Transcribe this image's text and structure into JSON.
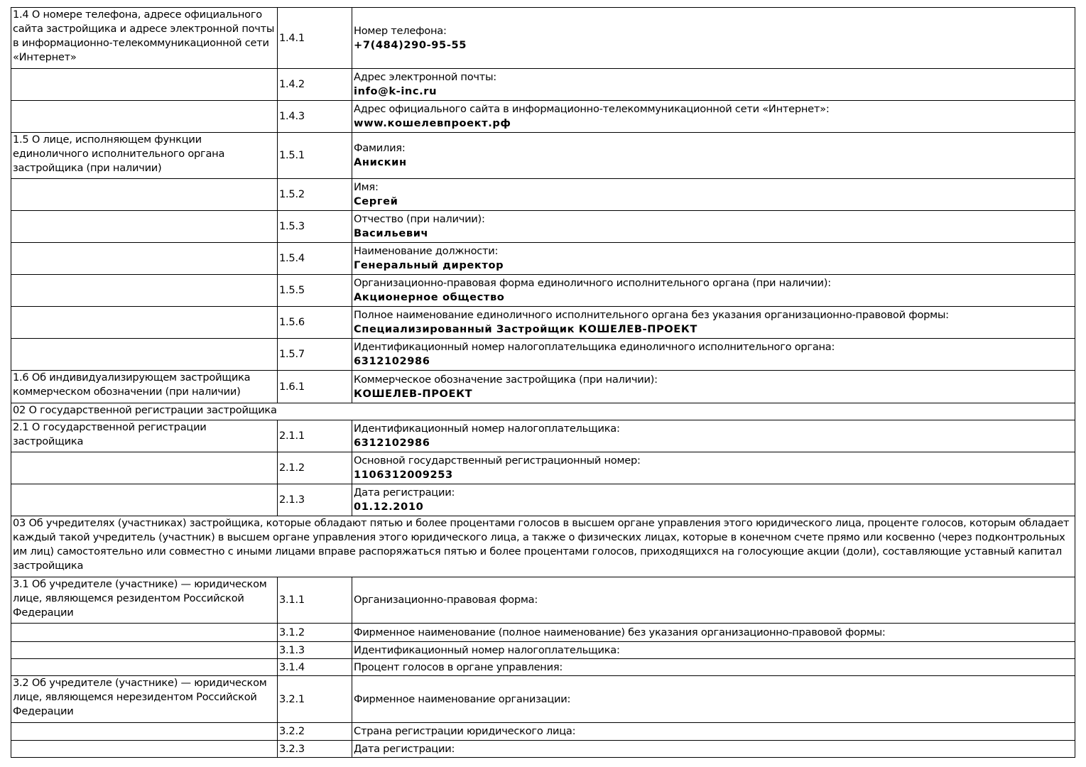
{
  "rows": [
    {
      "type": "item",
      "section": "1.4 О номере телефона, адресе официального сайта застройщика и адресе электронной почты в информационно-телекоммуникационной сети «Интернет»",
      "code": "1.4.1",
      "label": "Номер телефона:",
      "value": "+7(484)290-95-55",
      "h": 86
    },
    {
      "type": "item",
      "section": "",
      "code": "1.4.2",
      "label": "Адрес электронной почты:",
      "value": "info@k-inc.ru",
      "h": 45
    },
    {
      "type": "item",
      "section": "",
      "code": "1.4.3",
      "label": "Адрес официального сайта в информационно-телекоммуникационной сети «Интернет»:",
      "value": "www.кошелевпроект.рф",
      "h": 45
    },
    {
      "type": "item",
      "section": "1.5 О лице, исполняющем функции единоличного исполнительного органа застройщика (при наличии)",
      "code": "1.5.1",
      "label": "Фамилия:",
      "value": "Анискин",
      "h": 65
    },
    {
      "type": "item",
      "section": "",
      "code": "1.5.2",
      "label": "Имя:",
      "value": "Сергей",
      "h": 45
    },
    {
      "type": "item",
      "section": "",
      "code": "1.5.3",
      "label": "Отчество (при наличии):",
      "value": "Васильевич",
      "h": 45
    },
    {
      "type": "item",
      "section": "",
      "code": "1.5.4",
      "label": "Наименование должности:",
      "value": "Генеральный директор",
      "h": 45
    },
    {
      "type": "item",
      "section": "",
      "code": "1.5.5",
      "label": "Организационно-правовая форма единоличного исполнительного органа (при наличии):",
      "value": "Акционерное общество",
      "h": 45
    },
    {
      "type": "item",
      "section": "",
      "code": "1.5.6",
      "label": "Полное наименование единоличного исполнительного органа без указания организационно-правовой формы:",
      "value": "Специализированный Застройщик КОШЕЛЕВ-ПРОЕКТ",
      "h": 45
    },
    {
      "type": "item",
      "section": "",
      "code": "1.5.7",
      "label": "Идентификационный номер налогоплательщика единоличного исполнительного органа:",
      "value": "6312102986",
      "h": 45
    },
    {
      "type": "item",
      "section": "1.6 Об индивидуализирующем застройщика коммерческом обозначении (при наличии)",
      "code": "1.6.1",
      "label": "Коммерческое обозначение застройщика (при наличии):",
      "value": "КОШЕЛЕВ-ПРОЕКТ",
      "h": 46
    },
    {
      "type": "header",
      "text": "02 О государственной регистрации застройщика",
      "h": 24
    },
    {
      "type": "item",
      "section": "2.1 О государственной регистрации застройщика",
      "code": "2.1.1",
      "label": "Идентификационный номер налогоплательщика:",
      "value": "6312102986",
      "h": 45
    },
    {
      "type": "item",
      "section": "",
      "code": "2.1.2",
      "label": "Основной государственный регистрационный номер:",
      "value": "1106312009253",
      "h": 45
    },
    {
      "type": "item",
      "section": "",
      "code": "2.1.3",
      "label": "Дата регистрации:",
      "value": "01.12.2010",
      "h": 45
    },
    {
      "type": "header",
      "text": "03 Об учредителях (участниках) застройщика, которые обладают пятью и более процентами голосов в высшем органе управления этого юридического лица, проценте голосов, которым обладает каждый такой учредитель (участник) в высшем органе управления этого юридического лица, а также о физических лицах, которые в конечном счете прямо или косвенно (через подконтрольных им лиц) самостоятельно или совместно с иными лицами вправе распоряжаться пятью и более процентами голосов, приходящихся на голосующие акции (доли), составляющие уставный капитал застройщика",
      "h": 86
    },
    {
      "type": "item",
      "section": "3.1 Об учредителе (участнике) — юридическом лице, являющемся резидентом Российской Федерации",
      "code": "3.1.1",
      "label": "Организационно-правовая форма:",
      "value": "",
      "h": 65
    },
    {
      "type": "item",
      "section": "",
      "code": "3.1.2",
      "label": "Фирменное наименование (полное наименование) без указания организационно-правовой формы:",
      "value": "",
      "h": 26
    },
    {
      "type": "item",
      "section": "",
      "code": "3.1.3",
      "label": "Идентификационный номер налогоплательщика:",
      "value": "",
      "h": 24
    },
    {
      "type": "item",
      "section": "",
      "code": "3.1.4",
      "label": "Процент голосов в органе управления:",
      "value": "",
      "h": 24
    },
    {
      "type": "item",
      "section": "3.2 Об учредителе (участнике) — юридическом лице, являющемся нерезидентом Российской Федерации",
      "code": "3.2.1",
      "label": "Фирменное наименование организации:",
      "value": "",
      "h": 66
    },
    {
      "type": "item",
      "section": "",
      "code": "3.2.2",
      "label": "Страна регистрации юридического лица:",
      "value": "",
      "h": 25
    },
    {
      "type": "item",
      "section": "",
      "code": "3.2.3",
      "label": "Дата регистрации:",
      "value": "",
      "h": 24
    }
  ]
}
